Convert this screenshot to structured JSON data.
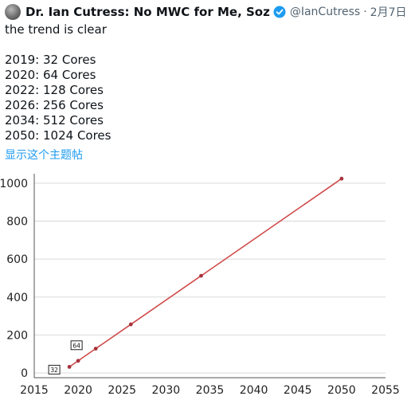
{
  "tweet": {
    "display_name": "Dr. Ian Cutress: No MWC for Me, Soz",
    "handle": "@IanCutress",
    "separator": "·",
    "date": "2月7日",
    "text_first_line": "the trend is clear",
    "text_lines": [
      "2019: 32 Cores",
      "2020: 64 Cores",
      "2022: 128 Cores",
      "2026: 256 Cores",
      "2034: 512 Cores",
      "2050: 1024 Cores"
    ],
    "show_thread_label": "显示这个主题帖"
  },
  "colors": {
    "line": "#d04a4a",
    "marker": "#a8323c",
    "link": "#1d9bf0",
    "verified": "#1d9bf0",
    "grid": "#d9d9d9"
  },
  "chart_data": {
    "type": "line",
    "x": [
      2019,
      2020,
      2022,
      2026,
      2034,
      2050
    ],
    "series": [
      {
        "values": [
          32,
          64,
          128,
          256,
          512,
          1024
        ]
      }
    ],
    "xlim": [
      2015,
      2055
    ],
    "ylim": [
      0,
      1050
    ],
    "xticks": [
      "2015",
      "2020",
      "2025",
      "2030",
      "2035",
      "2040",
      "2045",
      "2050",
      "2055"
    ],
    "yticks": [
      "0",
      "200",
      "400",
      "600",
      "800",
      "1000"
    ],
    "annotations": [
      "32",
      "64"
    ],
    "grid": "horizontal",
    "title": "",
    "xlabel": "",
    "ylabel": ""
  }
}
